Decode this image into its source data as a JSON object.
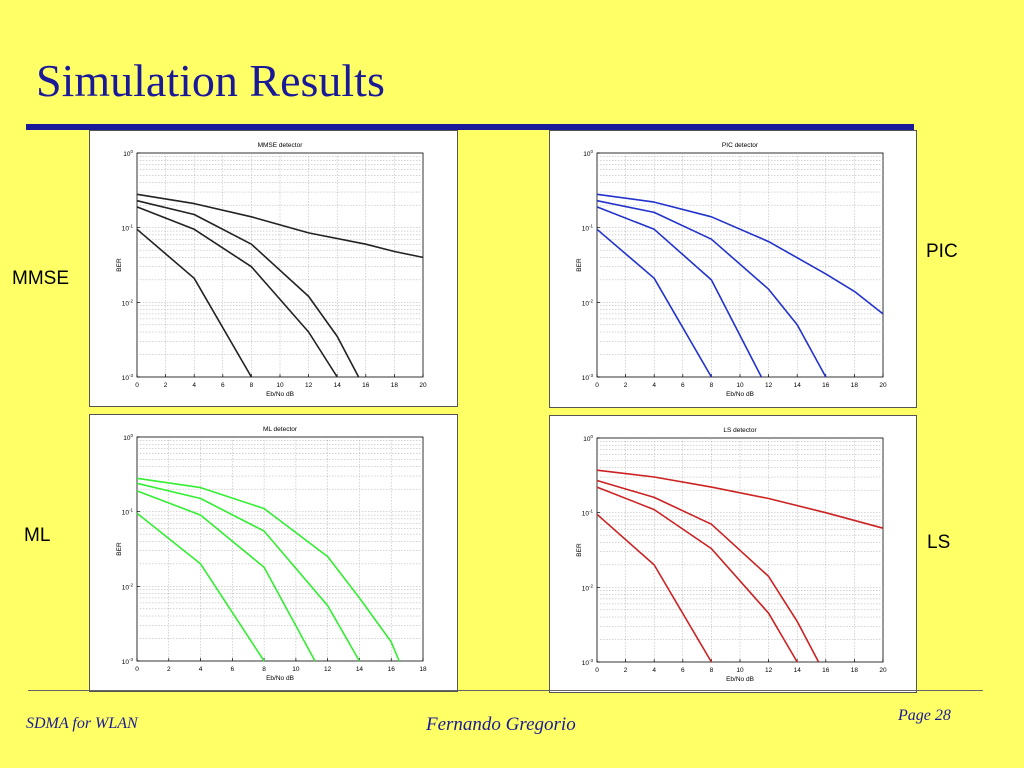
{
  "slide": {
    "title": "Simulation Results",
    "title_color": "#1A1A99",
    "background": "#FFFF66"
  },
  "labels": {
    "mmse": "MMSE",
    "pic": "PIC",
    "ml": "ML",
    "ls": "LS"
  },
  "footer": {
    "left": "SDMA for WLAN",
    "center": "Fernando Gregorio",
    "right": "Page 28"
  },
  "chart_data": [
    {
      "id": "mmse",
      "type": "line",
      "title": "MMSE detector",
      "xlabel": "Eb/No dB",
      "ylabel": "BER",
      "xlim": [
        0,
        20
      ],
      "xticks": [
        0,
        2,
        4,
        6,
        8,
        10,
        12,
        14,
        16,
        18,
        20
      ],
      "ylim_log10": [
        -3,
        0
      ],
      "yscale": "log",
      "grid": true,
      "color": "#222222",
      "series": [
        {
          "x": [
            0,
            4,
            8,
            12,
            16,
            18,
            20
          ],
          "y": [
            0.28,
            0.21,
            0.14,
            0.085,
            0.06,
            0.048,
            0.04
          ]
        },
        {
          "x": [
            0,
            4,
            8,
            12,
            14,
            15.5
          ],
          "y": [
            0.23,
            0.15,
            0.06,
            0.012,
            0.0035,
            0.001
          ]
        },
        {
          "x": [
            0,
            4,
            8,
            12,
            14
          ],
          "y": [
            0.19,
            0.095,
            0.03,
            0.004,
            0.001
          ]
        },
        {
          "x": [
            0,
            4,
            8
          ],
          "y": [
            0.095,
            0.021,
            0.001
          ]
        }
      ]
    },
    {
      "id": "pic",
      "type": "line",
      "title": "PIC detector",
      "xlabel": "Eb/No dB",
      "ylabel": "BER",
      "xlim": [
        0,
        20
      ],
      "xticks": [
        0,
        2,
        4,
        6,
        8,
        10,
        12,
        14,
        16,
        18,
        20
      ],
      "ylim_log10": [
        -3,
        0
      ],
      "yscale": "log",
      "grid": true,
      "color": "#2233CC",
      "series": [
        {
          "x": [
            0,
            4,
            8,
            12,
            16,
            18,
            20
          ],
          "y": [
            0.28,
            0.22,
            0.14,
            0.065,
            0.024,
            0.014,
            0.007
          ]
        },
        {
          "x": [
            0,
            4,
            8,
            12,
            14,
            16
          ],
          "y": [
            0.23,
            0.16,
            0.07,
            0.015,
            0.005,
            0.001
          ]
        },
        {
          "x": [
            0,
            4,
            8,
            11.5
          ],
          "y": [
            0.19,
            0.095,
            0.02,
            0.001
          ]
        },
        {
          "x": [
            0,
            4,
            8
          ],
          "y": [
            0.095,
            0.021,
            0.001
          ]
        }
      ]
    },
    {
      "id": "ml",
      "type": "line",
      "title": "ML detector",
      "xlabel": "Eb/No dB",
      "ylabel": "BER",
      "xlim": [
        0,
        18
      ],
      "xticks": [
        0,
        2,
        4,
        6,
        8,
        10,
        12,
        14,
        16,
        18
      ],
      "ylim_log10": [
        -3,
        0
      ],
      "yscale": "log",
      "grid": true,
      "color": "#33EE33",
      "series": [
        {
          "x": [
            0,
            4,
            8,
            12,
            14,
            16,
            16.5
          ],
          "y": [
            0.28,
            0.21,
            0.11,
            0.025,
            0.007,
            0.0018,
            0.001
          ]
        },
        {
          "x": [
            0,
            4,
            8,
            12,
            14
          ],
          "y": [
            0.24,
            0.15,
            0.055,
            0.0055,
            0.001
          ]
        },
        {
          "x": [
            0,
            4,
            8,
            11.2
          ],
          "y": [
            0.19,
            0.09,
            0.018,
            0.001
          ]
        },
        {
          "x": [
            0,
            4,
            8
          ],
          "y": [
            0.095,
            0.02,
            0.001
          ]
        }
      ]
    },
    {
      "id": "ls",
      "type": "line",
      "title": "LS detector",
      "xlabel": "Eb/No dB",
      "ylabel": "BER",
      "xlim": [
        0,
        20
      ],
      "xticks": [
        0,
        2,
        4,
        6,
        8,
        10,
        12,
        14,
        16,
        18,
        20
      ],
      "ylim_log10": [
        -3,
        0
      ],
      "yscale": "log",
      "grid": true,
      "color": "#CC2222",
      "series": [
        {
          "x": [
            0,
            4,
            8,
            12,
            16,
            20
          ],
          "y": [
            0.37,
            0.3,
            0.22,
            0.155,
            0.1,
            0.062
          ]
        },
        {
          "x": [
            0,
            4,
            8,
            12,
            14,
            15.5
          ],
          "y": [
            0.27,
            0.16,
            0.07,
            0.014,
            0.0035,
            0.001
          ]
        },
        {
          "x": [
            0,
            4,
            8,
            12,
            14
          ],
          "y": [
            0.22,
            0.11,
            0.033,
            0.0045,
            0.001
          ]
        },
        {
          "x": [
            0,
            4,
            8
          ],
          "y": [
            0.095,
            0.02,
            0.001
          ]
        }
      ]
    }
  ]
}
